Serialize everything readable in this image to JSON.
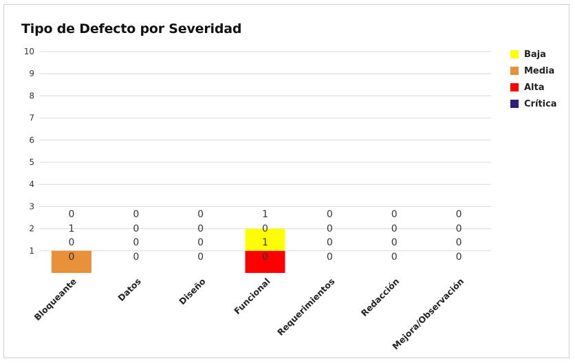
{
  "chart_data": {
    "type": "bar",
    "stacked": true,
    "title": "Tipo de Defecto por Severidad",
    "xlabel": "",
    "ylabel": "",
    "ylim": [
      0,
      10
    ],
    "yticks": [
      1,
      2,
      3,
      4,
      5,
      6,
      7,
      8,
      9,
      10
    ],
    "grid": true,
    "legend_position": "right",
    "categories": [
      "Bloqueante",
      "Datos",
      "Diseño",
      "Funcional",
      "Requerimientos",
      "Redacción",
      "Mejora/Observación"
    ],
    "series": [
      {
        "name": "Baja",
        "color": "#ffff00",
        "values": [
          0,
          0,
          0,
          1,
          0,
          0,
          0
        ]
      },
      {
        "name": "Media",
        "color": "#e8903a",
        "values": [
          1,
          0,
          0,
          0,
          0,
          0,
          0
        ]
      },
      {
        "name": "Alta",
        "color": "#ff0000",
        "values": [
          0,
          0,
          0,
          1,
          0,
          0,
          0
        ]
      },
      {
        "name": "Crítica",
        "color": "#2e1f78",
        "values": [
          0,
          0,
          0,
          0,
          0,
          0,
          0
        ]
      }
    ]
  }
}
